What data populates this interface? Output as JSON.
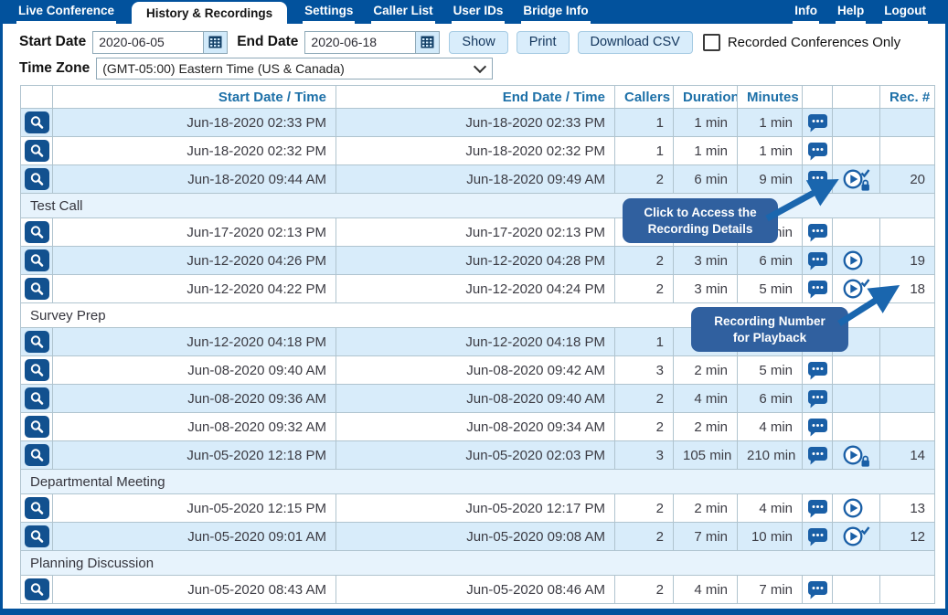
{
  "nav": {
    "tabs": [
      {
        "label": "Live Conference",
        "active": false
      },
      {
        "label": "History & Recordings",
        "active": true
      },
      {
        "label": "Settings",
        "active": false
      },
      {
        "label": "Caller List",
        "active": false
      },
      {
        "label": "User IDs",
        "active": false
      },
      {
        "label": "Bridge Info",
        "active": false
      }
    ],
    "right": [
      {
        "label": "Info"
      },
      {
        "label": "Help"
      },
      {
        "label": "Logout"
      }
    ]
  },
  "filters": {
    "start_date_label": "Start Date",
    "start_date_value": "2020-06-05",
    "end_date_label": "End Date",
    "end_date_value": "2020-06-18",
    "show_button": "Show",
    "print_button": "Print",
    "download_csv_button": "Download CSV",
    "recorded_only_label": "Recorded Conferences Only",
    "recorded_only_checked": false,
    "time_zone_label": "Time Zone",
    "time_zone_value": "(GMT-05:00) Eastern Time (US & Canada)"
  },
  "table": {
    "headers": {
      "start": "Start Date / Time",
      "end": "End Date / Time",
      "callers": "Callers",
      "duration": "Duration",
      "minutes": "Minutes",
      "rec": "Rec. #"
    },
    "rows": [
      {
        "kind": "data",
        "stripe": "blue",
        "start": "Jun-18-2020 02:33 PM",
        "end": "Jun-18-2020 02:33 PM",
        "callers": "1",
        "duration": "1 min",
        "minutes": "1 min",
        "chat": true,
        "play": "none",
        "rec": ""
      },
      {
        "kind": "data",
        "stripe": "white",
        "start": "Jun-18-2020 02:32 PM",
        "end": "Jun-18-2020 02:32 PM",
        "callers": "1",
        "duration": "1 min",
        "minutes": "1 min",
        "chat": true,
        "play": "none",
        "rec": ""
      },
      {
        "kind": "data",
        "stripe": "blue",
        "start": "Jun-18-2020 09:44 AM",
        "end": "Jun-18-2020 09:49 AM",
        "callers": "2",
        "duration": "6 min",
        "minutes": "9 min",
        "chat": true,
        "play": "check-lock",
        "rec": "20"
      },
      {
        "kind": "group",
        "stripe": "tint",
        "label": "Test Call"
      },
      {
        "kind": "data",
        "stripe": "white",
        "start": "Jun-17-2020 02:13 PM",
        "end": "Jun-17-2020 02:13 PM",
        "callers": "",
        "duration": "",
        "minutes": "1 min",
        "chat": true,
        "play": "none",
        "rec": ""
      },
      {
        "kind": "data",
        "stripe": "blue",
        "start": "Jun-12-2020 04:26 PM",
        "end": "Jun-12-2020 04:28 PM",
        "callers": "2",
        "duration": "3 min",
        "minutes": "6 min",
        "chat": true,
        "play": "plain",
        "rec": "19"
      },
      {
        "kind": "data",
        "stripe": "white",
        "start": "Jun-12-2020 04:22 PM",
        "end": "Jun-12-2020 04:24 PM",
        "callers": "2",
        "duration": "3 min",
        "minutes": "5 min",
        "chat": true,
        "play": "check",
        "rec": "18"
      },
      {
        "kind": "group",
        "stripe": "white",
        "label": "Survey Prep"
      },
      {
        "kind": "data",
        "stripe": "blue",
        "start": "Jun-12-2020 04:18 PM",
        "end": "Jun-12-2020 04:18 PM",
        "callers": "1",
        "duration": "",
        "minutes": "",
        "chat": true,
        "play": "none",
        "rec": ""
      },
      {
        "kind": "data",
        "stripe": "white",
        "start": "Jun-08-2020 09:40 AM",
        "end": "Jun-08-2020 09:42 AM",
        "callers": "3",
        "duration": "2 min",
        "minutes": "5 min",
        "chat": true,
        "play": "none",
        "rec": ""
      },
      {
        "kind": "data",
        "stripe": "blue",
        "start": "Jun-08-2020 09:36 AM",
        "end": "Jun-08-2020 09:40 AM",
        "callers": "2",
        "duration": "4 min",
        "minutes": "6 min",
        "chat": true,
        "play": "none",
        "rec": ""
      },
      {
        "kind": "data",
        "stripe": "white",
        "start": "Jun-08-2020 09:32 AM",
        "end": "Jun-08-2020 09:34 AM",
        "callers": "2",
        "duration": "2 min",
        "minutes": "4 min",
        "chat": true,
        "play": "none",
        "rec": ""
      },
      {
        "kind": "data",
        "stripe": "blue",
        "start": "Jun-05-2020 12:18 PM",
        "end": "Jun-05-2020 02:03 PM",
        "callers": "3",
        "duration": "105 min",
        "minutes": "210 min",
        "chat": true,
        "play": "lock",
        "rec": "14"
      },
      {
        "kind": "group",
        "stripe": "tint",
        "label": "Departmental Meeting"
      },
      {
        "kind": "data",
        "stripe": "white",
        "start": "Jun-05-2020 12:15 PM",
        "end": "Jun-05-2020 12:17 PM",
        "callers": "2",
        "duration": "2 min",
        "minutes": "4 min",
        "chat": true,
        "play": "plain",
        "rec": "13"
      },
      {
        "kind": "data",
        "stripe": "blue",
        "start": "Jun-05-2020 09:01 AM",
        "end": "Jun-05-2020 09:08 AM",
        "callers": "2",
        "duration": "7 min",
        "minutes": "10 min",
        "chat": true,
        "play": "check",
        "rec": "12"
      },
      {
        "kind": "group",
        "stripe": "tint",
        "label": "Planning Discussion"
      },
      {
        "kind": "data",
        "stripe": "white",
        "start": "Jun-05-2020 08:43 AM",
        "end": "Jun-05-2020 08:46 AM",
        "callers": "2",
        "duration": "4 min",
        "minutes": "7 min",
        "chat": true,
        "play": "none",
        "rec": ""
      }
    ]
  },
  "tooltips": [
    {
      "line1": "Click to Access the",
      "line2": "Recording Details"
    },
    {
      "line1": "Recording Number",
      "line2": "for Playback"
    }
  ],
  "colors": {
    "nav_blue": "#02529d",
    "row_blue": "#d8ecfa",
    "group_tint": "#e7f3fc",
    "icon_blue": "#1a5fa6",
    "magnifier_bg": "#12518f",
    "tooltip_bg": "#30609f",
    "arrow_blue": "#1a66ae",
    "header_text": "#1d70a8",
    "button_bg": "#d9edfb"
  }
}
